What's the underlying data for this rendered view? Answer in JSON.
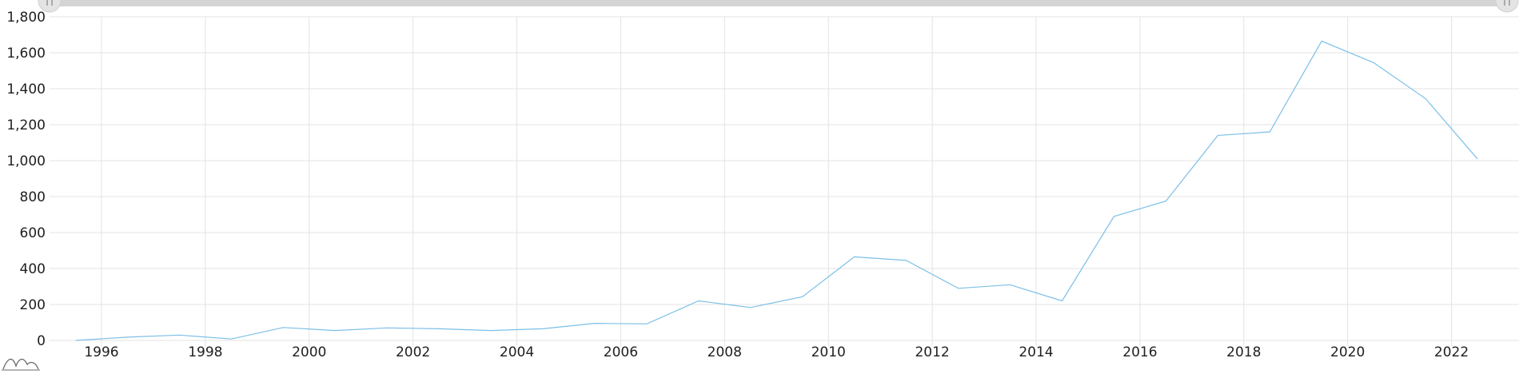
{
  "chart_data": {
    "type": "line",
    "title": "",
    "xlabel": "",
    "ylabel": "",
    "x": [
      1995.5,
      1996.5,
      1997.5,
      1998.5,
      1999.5,
      2000.5,
      2001.5,
      2002.5,
      2003.5,
      2004.5,
      2005.5,
      2006.5,
      2007.5,
      2008.5,
      2009.5,
      2010.5,
      2011.5,
      2012.5,
      2013.5,
      2014.5,
      2015.5,
      2016.5,
      2017.5,
      2018.5,
      2019.5,
      2020.5,
      2021.5,
      2022.5
    ],
    "series": [
      {
        "values": [
          0,
          18,
          30,
          8,
          72,
          55,
          70,
          65,
          55,
          65,
          95,
          92,
          220,
          183,
          243,
          465,
          445,
          290,
          310,
          220,
          690,
          775,
          1140,
          1160,
          1665,
          1545,
          1345,
          1010
        ],
        "color": "#7cc0e6"
      }
    ],
    "xlim": [
      1995,
      2023.3
    ],
    "ylim": [
      0,
      1800
    ],
    "xticks": [
      1996,
      1998,
      2000,
      2002,
      2004,
      2006,
      2008,
      2010,
      2012,
      2014,
      2016,
      2018,
      2020,
      2022
    ],
    "xtick_labels": [
      "1996",
      "1998",
      "2000",
      "2002",
      "2004",
      "2006",
      "2008",
      "2010",
      "2012",
      "2014",
      "2016",
      "2018",
      "2020",
      "2022"
    ],
    "yticks": [
      0,
      200,
      400,
      600,
      800,
      1000,
      1200,
      1400,
      1600,
      1800
    ],
    "ytick_labels": [
      "0",
      "200",
      "400",
      "600",
      "800",
      "1,000",
      "1,200",
      "1,400",
      "1,600",
      "1,800"
    ],
    "grid": true,
    "legend": "none"
  },
  "scrollbar": {
    "left_handle_icon": "grip-icon",
    "right_handle_icon": "grip-icon",
    "track_color": "#d4d4d4"
  },
  "preview": {
    "icon": "series-preview-icon"
  },
  "colors": {
    "grid": "#e3e3e3",
    "axis_text": "#1f1f1f"
  }
}
